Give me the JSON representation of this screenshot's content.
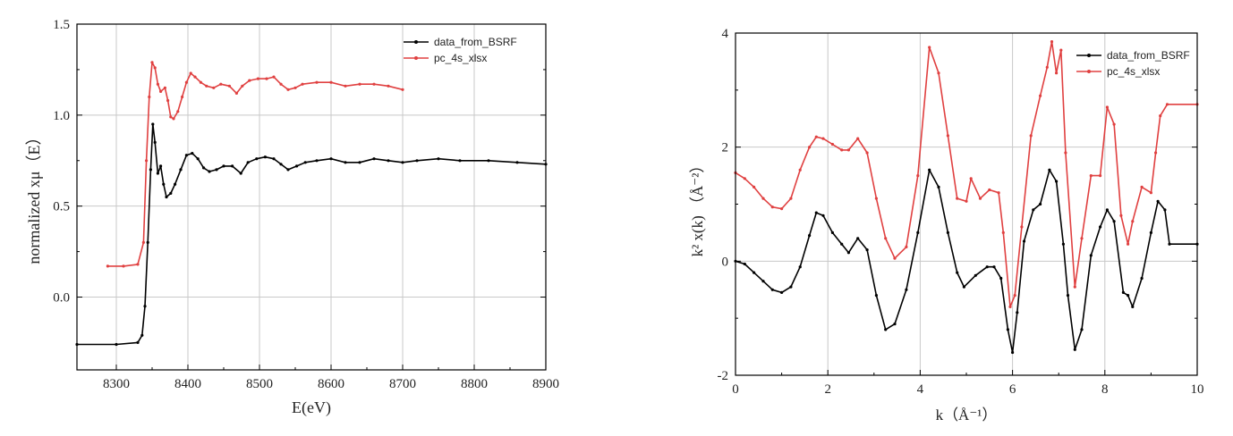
{
  "chart_data": [
    {
      "type": "line",
      "xlabel": "E(eV)",
      "ylabel": "normalized xμ（E）",
      "xlim": [
        8245,
        8900
      ],
      "ylim": [
        -0.4,
        1.5
      ],
      "xticks": [
        8300,
        8400,
        8500,
        8600,
        8700,
        8800,
        8900
      ],
      "xtick_labels": [
        "8300",
        "8400",
        "8500",
        "8600",
        "8700",
        "8800",
        "8900"
      ],
      "yticks": [
        0.0,
        0.5,
        1.0,
        1.5
      ],
      "ytick_labels": [
        "0.0",
        "0.5",
        "1.0",
        "1.5"
      ],
      "grid": true,
      "legend_position": "top-right",
      "series": [
        {
          "name": "data_from_BSRF",
          "color": "#000000",
          "x": [
            8245,
            8300,
            8330,
            8336,
            8340,
            8344,
            8348,
            8351,
            8354,
            8358,
            8362,
            8366,
            8370,
            8376,
            8382,
            8390,
            8398,
            8406,
            8414,
            8422,
            8430,
            8440,
            8450,
            8462,
            8474,
            8484,
            8496,
            8508,
            8520,
            8530,
            8540,
            8552,
            8564,
            8580,
            8600,
            8620,
            8640,
            8660,
            8680,
            8700,
            8720,
            8750,
            8780,
            8820,
            8860,
            8900
          ],
          "y": [
            -0.26,
            -0.26,
            -0.25,
            -0.21,
            -0.05,
            0.3,
            0.7,
            0.95,
            0.85,
            0.68,
            0.72,
            0.62,
            0.55,
            0.57,
            0.62,
            0.7,
            0.78,
            0.79,
            0.76,
            0.71,
            0.69,
            0.7,
            0.72,
            0.72,
            0.68,
            0.74,
            0.76,
            0.77,
            0.76,
            0.73,
            0.7,
            0.72,
            0.74,
            0.75,
            0.76,
            0.74,
            0.74,
            0.76,
            0.75,
            0.74,
            0.75,
            0.76,
            0.75,
            0.75,
            0.74,
            0.73
          ]
        },
        {
          "name": "pc_4s_xlsx",
          "color": "#e04040",
          "x": [
            8288,
            8310,
            8330,
            8338,
            8342,
            8346,
            8350,
            8354,
            8358,
            8362,
            8368,
            8372,
            8376,
            8380,
            8386,
            8392,
            8398,
            8404,
            8410,
            8418,
            8426,
            8436,
            8446,
            8458,
            8468,
            8476,
            8486,
            8498,
            8510,
            8520,
            8530,
            8540,
            8550,
            8560,
            8580,
            8600,
            8620,
            8640,
            8660,
            8680,
            8700
          ],
          "y": [
            0.17,
            0.17,
            0.18,
            0.3,
            0.75,
            1.1,
            1.29,
            1.26,
            1.17,
            1.13,
            1.15,
            1.08,
            0.99,
            0.98,
            1.02,
            1.1,
            1.18,
            1.23,
            1.21,
            1.18,
            1.16,
            1.15,
            1.17,
            1.16,
            1.12,
            1.16,
            1.19,
            1.2,
            1.2,
            1.21,
            1.17,
            1.14,
            1.15,
            1.17,
            1.18,
            1.18,
            1.16,
            1.17,
            1.17,
            1.16,
            1.14
          ]
        }
      ]
    },
    {
      "type": "line",
      "xlabel": "k（Å⁻¹）",
      "ylabel": "k² x(k) （Å⁻²）",
      "xlim": [
        0,
        10
      ],
      "ylim": [
        -2,
        4
      ],
      "xticks": [
        0,
        2,
        4,
        6,
        8,
        10
      ],
      "xtick_labels": [
        "0",
        "2",
        "4",
        "6",
        "8",
        "10"
      ],
      "yticks": [
        -2,
        0,
        2,
        4
      ],
      "ytick_labels": [
        "-2",
        "0",
        "2",
        "4"
      ],
      "grid": true,
      "legend_position": "top-right",
      "series": [
        {
          "name": "data_from_BSRF",
          "color": "#000000",
          "x": [
            0,
            0.2,
            0.4,
            0.6,
            0.8,
            1.0,
            1.2,
            1.4,
            1.6,
            1.75,
            1.9,
            2.1,
            2.3,
            2.45,
            2.65,
            2.85,
            3.05,
            3.25,
            3.45,
            3.7,
            3.95,
            4.2,
            4.4,
            4.6,
            4.8,
            4.95,
            5.2,
            5.45,
            5.6,
            5.75,
            5.9,
            6.0,
            6.1,
            6.25,
            6.45,
            6.6,
            6.8,
            6.95,
            7.1,
            7.2,
            7.35,
            7.5,
            7.7,
            7.9,
            8.05,
            8.2,
            8.4,
            8.5,
            8.6,
            8.8,
            9.0,
            9.15,
            9.3,
            9.4,
            10.0
          ],
          "y": [
            0,
            -0.05,
            -0.2,
            -0.35,
            -0.5,
            -0.55,
            -0.45,
            -0.1,
            0.45,
            0.85,
            0.8,
            0.5,
            0.3,
            0.15,
            0.4,
            0.2,
            -0.6,
            -1.2,
            -1.1,
            -0.5,
            0.5,
            1.6,
            1.3,
            0.5,
            -0.2,
            -0.45,
            -0.25,
            -0.1,
            -0.1,
            -0.3,
            -1.2,
            -1.6,
            -0.9,
            0.35,
            0.9,
            1.0,
            1.6,
            1.4,
            0.3,
            -0.6,
            -1.55,
            -1.2,
            0.1,
            0.6,
            0.9,
            0.7,
            -0.55,
            -0.6,
            -0.8,
            -0.3,
            0.5,
            1.05,
            0.9,
            0.3,
            0.3
          ]
        },
        {
          "name": "pc_4s_xlsx",
          "color": "#e04040",
          "x": [
            0,
            0.2,
            0.4,
            0.6,
            0.8,
            1.0,
            1.2,
            1.4,
            1.6,
            1.75,
            1.9,
            2.1,
            2.3,
            2.45,
            2.65,
            2.85,
            3.05,
            3.25,
            3.45,
            3.7,
            3.95,
            4.2,
            4.4,
            4.6,
            4.8,
            5.0,
            5.1,
            5.3,
            5.5,
            5.7,
            5.8,
            5.95,
            6.05,
            6.2,
            6.4,
            6.6,
            6.75,
            6.85,
            6.95,
            7.05,
            7.15,
            7.35,
            7.5,
            7.7,
            7.9,
            8.05,
            8.2,
            8.35,
            8.5,
            8.6,
            8.8,
            9.0,
            9.1,
            9.2,
            9.35,
            10.0
          ],
          "y": [
            1.55,
            1.45,
            1.3,
            1.1,
            0.95,
            0.92,
            1.1,
            1.6,
            2.0,
            2.18,
            2.15,
            2.05,
            1.95,
            1.95,
            2.15,
            1.9,
            1.1,
            0.4,
            0.05,
            0.25,
            1.5,
            3.75,
            3.3,
            2.2,
            1.1,
            1.05,
            1.45,
            1.1,
            1.25,
            1.2,
            0.5,
            -0.8,
            -0.6,
            0.6,
            2.2,
            2.9,
            3.4,
            3.85,
            3.3,
            3.7,
            1.9,
            -0.45,
            0.4,
            1.5,
            1.5,
            2.7,
            2.4,
            0.8,
            0.3,
            0.7,
            1.3,
            1.2,
            1.9,
            2.55,
            2.75,
            2.75
          ]
        }
      ]
    }
  ]
}
